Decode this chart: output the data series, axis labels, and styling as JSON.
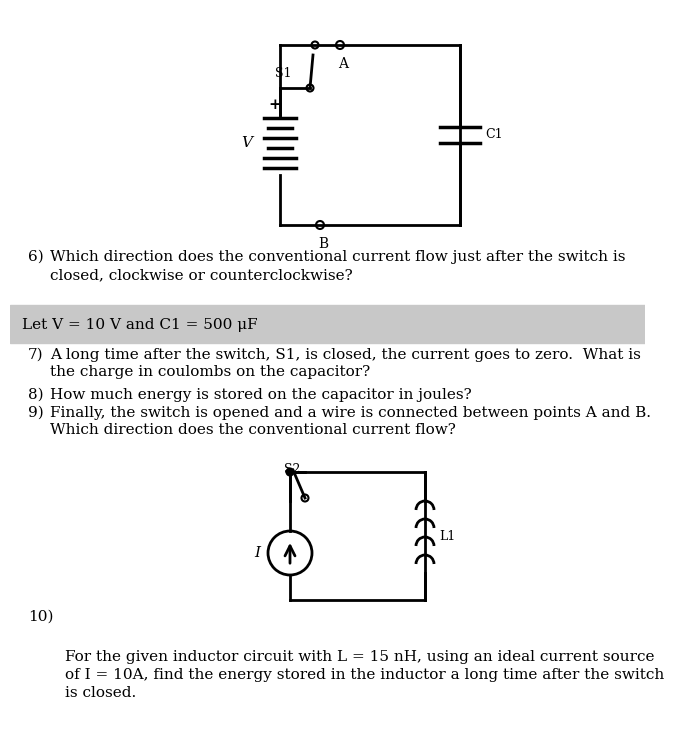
{
  "bg_color": "#ffffff",
  "gray_bg": "#c8c8c8",
  "text_color": "#000000",
  "lw": 2.0,
  "font_size": 11,
  "font_family": "DejaVu Serif",
  "q6_line1": "Which direction does the conventional current flow just after the switch is",
  "q6_line2": "closed, clockwise or counterclockwise?",
  "let_text": "Let V = 10 V and C1 = 500 μF",
  "q7_line1": "A long time after the switch, S1, is closed, the current goes to zero.  What is",
  "q7_line2": "the charge in coulombs on the capacitor?",
  "q8_text": "How much energy is stored on the capacitor in joules?",
  "q9_line1": "Finally, the switch is opened and a wire is connected between points A and B.",
  "q9_line2": "Which direction does the conventional current flow?",
  "q10_line1": "For the given inductor circuit with L = 15 nH, using an ideal current source",
  "q10_line2": "of I = 10A, find the energy stored in the inductor a long time after the switch",
  "q10_line3": "is closed."
}
